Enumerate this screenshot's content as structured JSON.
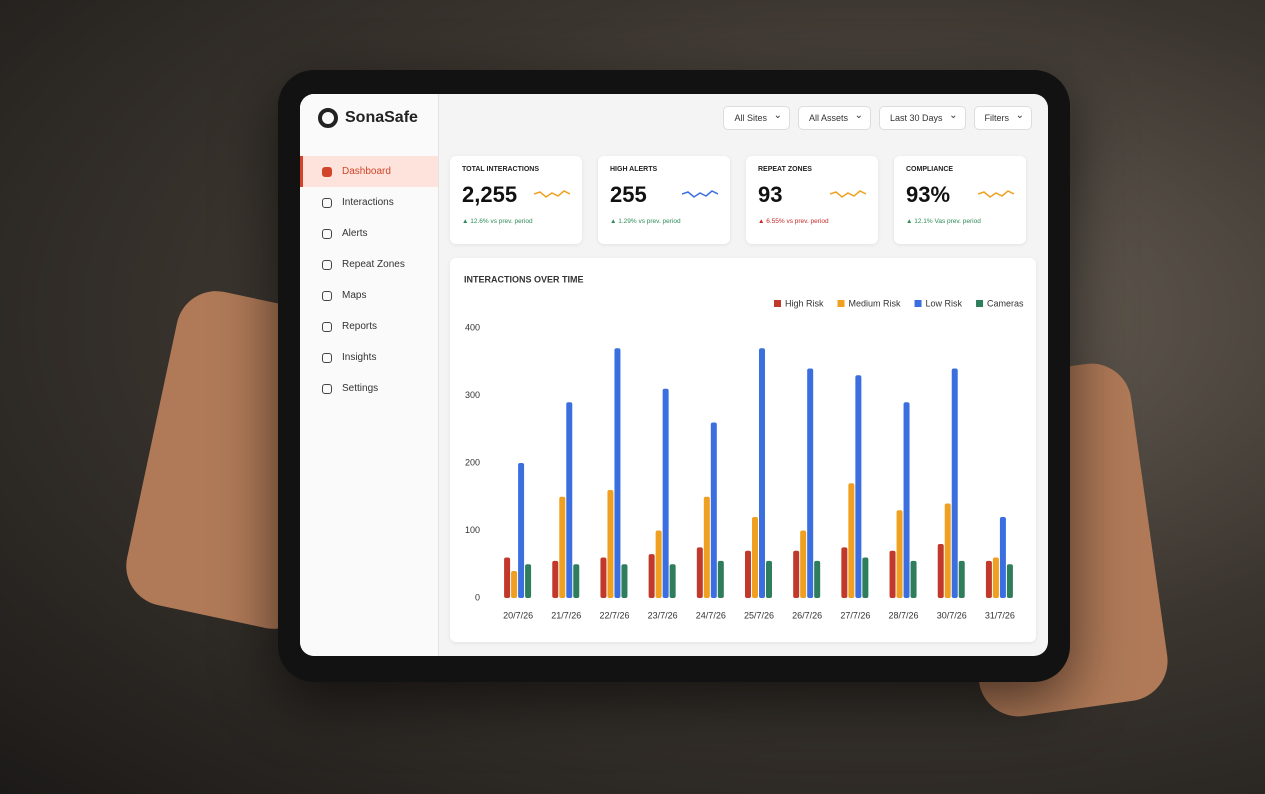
{
  "brand": "SonaSafe",
  "nav": [
    "Dashboard",
    "Interactions",
    "Alerts",
    "Repeat Zones",
    "Maps",
    "Reports",
    "Insights",
    "Settings"
  ],
  "filters": [
    "All Sites",
    "All Assets",
    "Last 30 Days",
    "Filters"
  ],
  "kpis": [
    {
      "label": "TOTAL INTERACTIONS",
      "value": "2,255",
      "change": "▲ 12.6% vs prev. period",
      "color": "#2e8b57"
    },
    {
      "label": "HIGH ALERTS",
      "value": "255",
      "change": "▲ 1.29% vs prev. period",
      "color": "#2e8b57"
    },
    {
      "label": "REPEAT ZONES",
      "value": "93",
      "change": "▲ 6.55% vs prev. period",
      "color": "#c62828"
    },
    {
      "label": "COMPLIANCE",
      "value": "93%",
      "change": "▲ 12.1% Vas prev. period",
      "color": "#2e8b57"
    }
  ],
  "chart_data": {
    "type": "bar",
    "title": "INTERACTIONS OVER TIME",
    "categories": [
      "20/7/26",
      "21/7/26",
      "22/7/26",
      "23/7/26",
      "24/7/26",
      "25/7/26",
      "26/7/26",
      "27/7/26",
      "28/7/26",
      "30/7/26",
      "31/7/26"
    ],
    "series": [
      {
        "name": "High Risk",
        "color": "#c0392b",
        "values": [
          60,
          55,
          60,
          65,
          75,
          70,
          70,
          75,
          70,
          80,
          55
        ]
      },
      {
        "name": "Medium Risk",
        "color": "#f0a020",
        "values": [
          40,
          150,
          160,
          100,
          150,
          120,
          100,
          170,
          130,
          140,
          60
        ]
      },
      {
        "name": "Low Risk",
        "color": "#3b6fe0",
        "values": [
          200,
          290,
          370,
          310,
          260,
          370,
          340,
          330,
          290,
          340,
          120
        ]
      },
      {
        "name": "Cameras",
        "color": "#2e7d5b",
        "values": [
          50,
          50,
          50,
          50,
          55,
          55,
          55,
          60,
          55,
          55,
          50
        ]
      }
    ],
    "ylim": [
      0,
      400
    ],
    "yticks": [
      0,
      100,
      200,
      300,
      400
    ],
    "legend": "top-right"
  }
}
